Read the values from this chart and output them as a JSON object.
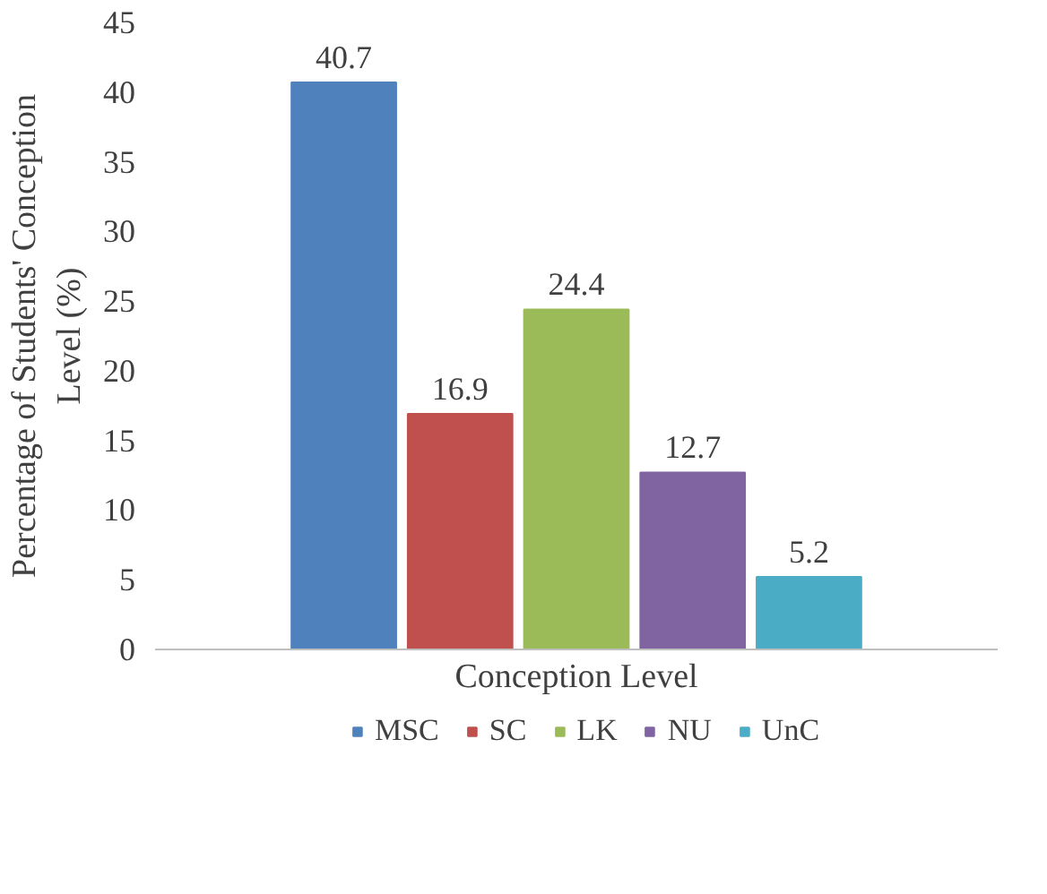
{
  "chart_data": {
    "type": "bar",
    "xlabel": "Conception Level",
    "ylabel": "Percentage of Students' Conception Level (%)",
    "categories": [
      null
    ],
    "series": [
      {
        "name": "MSC",
        "color": "#4f81bd",
        "values": [
          40.7
        ]
      },
      {
        "name": "SC",
        "color": "#c0504d",
        "values": [
          16.9
        ]
      },
      {
        "name": "LK",
        "color": "#9bbb59",
        "values": [
          24.4
        ]
      },
      {
        "name": "NU",
        "color": "#8064a2",
        "values": [
          12.7
        ]
      },
      {
        "name": "UnC",
        "color": "#4bacc6",
        "values": [
          5.2
        ]
      }
    ],
    "ylim": [
      0,
      45
    ],
    "yticks": [
      0,
      5,
      10,
      15,
      20,
      25,
      30,
      35,
      40,
      45
    ],
    "data_labels": true,
    "legend": "bottom",
    "grid": false,
    "tick_labels": "y"
  }
}
